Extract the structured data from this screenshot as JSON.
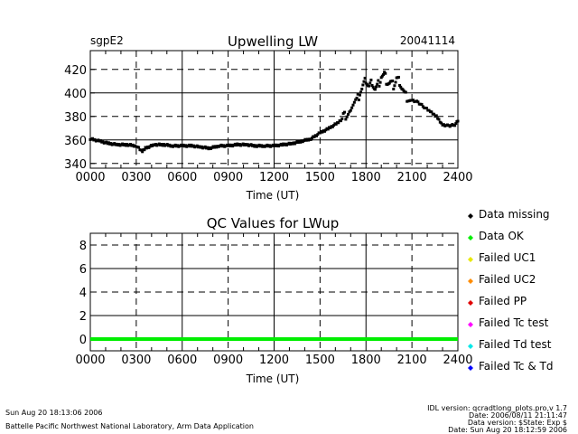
{
  "header": {
    "site": "sgpE2",
    "date": "20041114"
  },
  "chart_data": [
    {
      "type": "scatter",
      "title": "Upwelling LW",
      "xlabel": "Time (UT)",
      "ylabel": "",
      "xlim": [
        0,
        2400
      ],
      "ylim": [
        336,
        436
      ],
      "x_ticks": [
        "0000",
        "0300",
        "0600",
        "0900",
        "1200",
        "1500",
        "1800",
        "2100",
        "2400"
      ],
      "y_ticks": [
        "340",
        "360",
        "380",
        "400",
        "420"
      ],
      "dashed_y_gridlines": [
        340,
        380,
        420
      ],
      "solid_y_gridlines": [
        360,
        400
      ],
      "marker_color": "#000000",
      "series": [
        {
          "name": "LWup",
          "x": [
            0,
            60,
            120,
            180,
            240,
            300,
            340,
            360,
            420,
            480,
            540,
            600,
            660,
            720,
            780,
            840,
            900,
            960,
            1020,
            1080,
            1140,
            1200,
            1260,
            1320,
            1380,
            1440,
            1500,
            1560,
            1620,
            1660,
            1700,
            1740,
            1760,
            1780,
            1800,
            1820,
            1840,
            1860,
            1880,
            1900,
            1920,
            1940,
            1960,
            1980,
            2000,
            2020,
            2040,
            2060,
            2100,
            2140,
            2180,
            2220,
            2260,
            2300,
            2340,
            2380,
            2400
          ],
          "y": [
            361,
            359,
            357,
            356,
            356,
            355,
            350,
            353,
            356,
            356,
            355,
            355,
            355,
            354,
            353,
            355,
            355,
            356,
            356,
            355,
            355,
            355,
            356,
            357,
            359,
            361,
            366,
            370,
            375,
            380,
            386,
            393,
            400,
            405,
            411,
            405,
            410,
            403,
            407,
            414,
            415,
            409,
            408,
            406,
            412,
            410,
            403,
            397,
            394,
            392,
            388,
            384,
            380,
            373,
            372,
            373,
            376
          ]
        }
      ]
    },
    {
      "type": "line",
      "title": "QC Values for LWup",
      "xlabel": "Time (UT)",
      "ylabel": "",
      "xlim": [
        0,
        2400
      ],
      "ylim": [
        -1,
        9
      ],
      "x_ticks": [
        "0000",
        "0300",
        "0600",
        "0900",
        "1200",
        "1500",
        "1800",
        "2100",
        "2400"
      ],
      "y_ticks": [
        "0",
        "2",
        "4",
        "6",
        "8"
      ],
      "dashed_y_gridlines": [
        0,
        4,
        8
      ],
      "solid_y_gridlines": [
        2,
        6
      ],
      "series": [
        {
          "name": "QC",
          "x": [
            0,
            2400
          ],
          "y": [
            0,
            0
          ],
          "color": "#00ee00"
        }
      ]
    }
  ],
  "legend": [
    {
      "label": "Data missing",
      "color": "#000000"
    },
    {
      "label": "Data OK",
      "color": "#00ee00"
    },
    {
      "label": "Failed UC1",
      "color": "#e8e800"
    },
    {
      "label": "Failed UC2",
      "color": "#ff8c00"
    },
    {
      "label": "Failed PP",
      "color": "#e00000"
    },
    {
      "label": "Failed Tc test",
      "color": "#ff00ff"
    },
    {
      "label": "Failed Td test",
      "color": "#00e8e8"
    },
    {
      "label": "Failed Tc & Td",
      "color": "#0000ff"
    }
  ],
  "footer": {
    "timestamp": "Sun Aug 20 18:13:06 2006",
    "lab": "Battelle Pacific Northwest National Laboratory, Arm Data Application",
    "idl_lines": [
      "IDL version: qcradtlong_plots.pro,v 1.7",
      "Date: 2006/08/11 21:11:47",
      "Data version: $State: Exp $",
      "Date: Sun Aug 20 18:12:59 2006"
    ]
  }
}
